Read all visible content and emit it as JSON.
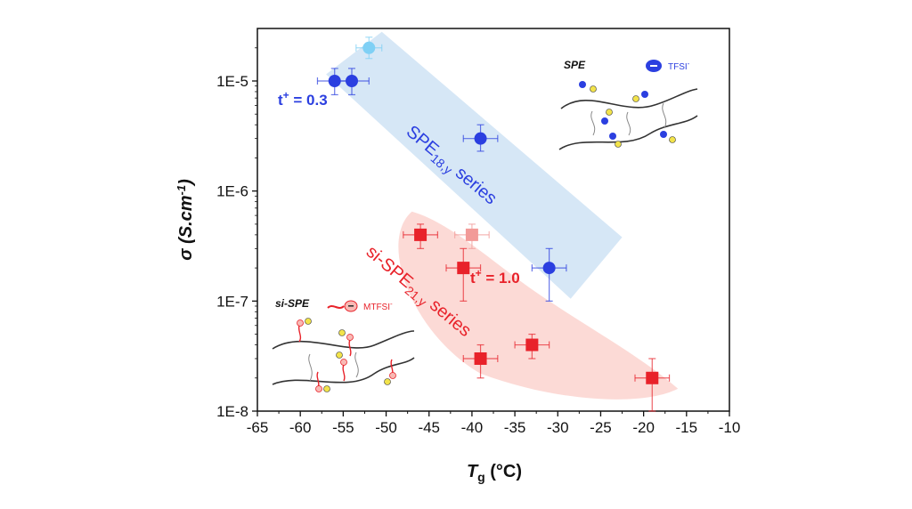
{
  "chart_data": {
    "type": "scatter",
    "xlabel": {
      "symbol": "T",
      "sub": "g",
      "unit": " (°C)"
    },
    "ylabel": {
      "symbol": "σ",
      "unit": " (S.cm",
      "sup": "-1",
      "close": ")"
    },
    "xlim": [
      -65,
      -10
    ],
    "ylim": [
      1e-08,
      3e-05
    ],
    "y_scale": "log",
    "x_ticks": [
      "-65",
      "-60",
      "-55",
      "-50",
      "-45",
      "-40",
      "-35",
      "-30",
      "-25",
      "-20",
      "-15",
      "-10"
    ],
    "y_ticks": [
      {
        "label": "1E-8",
        "value": 1e-08
      },
      {
        "label": "1E-7",
        "value": 1e-07
      },
      {
        "label": "1E-6",
        "value": 1e-06
      },
      {
        "label": "1E-5",
        "value": 1e-05
      }
    ],
    "series": [
      {
        "key": "spe",
        "marker": "circle",
        "color": "#2b3fe0",
        "label": {
          "main": "SPE",
          "sub": "18,y",
          "rest": " series"
        },
        "band_color": "#cfe3f5",
        "points": [
          {
            "x": -52,
            "y": 2e-05,
            "xerr": 1.5,
            "ylo": 1.6e-05,
            "yhi": 2.5e-05,
            "color": "#7fd0f5"
          },
          {
            "x": -56,
            "y": 1e-05,
            "xerr": 2,
            "ylo": 7.5e-06,
            "yhi": 1.3e-05,
            "color": "#2b3fe0"
          },
          {
            "x": -54,
            "y": 1e-05,
            "xerr": 2,
            "ylo": 7.5e-06,
            "yhi": 1.3e-05,
            "color": "#2b3fe0"
          },
          {
            "x": -39,
            "y": 3e-06,
            "xerr": 2,
            "ylo": 2.3e-06,
            "yhi": 4e-06,
            "color": "#2b3fe0"
          },
          {
            "x": -31,
            "y": 2e-07,
            "xerr": 2,
            "ylo": 1e-07,
            "yhi": 3e-07,
            "color": "#2b3fe0"
          }
        ]
      },
      {
        "key": "sispe",
        "marker": "square",
        "color": "#e8222a",
        "label": {
          "main": "si-SPE",
          "sub": "21,y",
          "rest": " series"
        },
        "band_color": "#fbd3cf",
        "points": [
          {
            "x": -46,
            "y": 4e-07,
            "xerr": 2,
            "ylo": 3e-07,
            "yhi": 5e-07,
            "color": "#e8222a"
          },
          {
            "x": -40,
            "y": 4e-07,
            "xerr": 2,
            "ylo": 3e-07,
            "yhi": 5e-07,
            "color": "#f29a98"
          },
          {
            "x": -41,
            "y": 2e-07,
            "xerr": 2,
            "ylo": 1e-07,
            "yhi": 3e-07,
            "color": "#e8222a"
          },
          {
            "x": -39,
            "y": 3e-08,
            "xerr": 2,
            "ylo": 2e-08,
            "yhi": 4e-08,
            "color": "#e8222a"
          },
          {
            "x": -33,
            "y": 4e-08,
            "xerr": 2,
            "ylo": 3e-08,
            "yhi": 5e-08,
            "color": "#e8222a"
          },
          {
            "x": -19,
            "y": 2e-08,
            "xerr": 2,
            "ylo": 1e-08,
            "yhi": 3e-08,
            "color": "#e8222a"
          }
        ]
      }
    ],
    "annotations": [
      {
        "key": "spe",
        "prefix": "t",
        "sup": "+",
        "rest": " = 0.3",
        "color": "#2b3fe0"
      },
      {
        "key": "sispe",
        "prefix": "t",
        "sup": "+",
        "rest": " = 1.0",
        "color": "#e8222a"
      }
    ],
    "insets": [
      {
        "key": "spe",
        "title": "SPE",
        "anion": "TFSI",
        "anion_sup": "-",
        "anion_color": "#2b3fe0"
      },
      {
        "key": "sispe",
        "title": "si-SPE",
        "anion": "MTFSI",
        "anion_sup": "-",
        "anion_color": "#e8222a"
      }
    ],
    "grid": false,
    "legend": "none"
  }
}
